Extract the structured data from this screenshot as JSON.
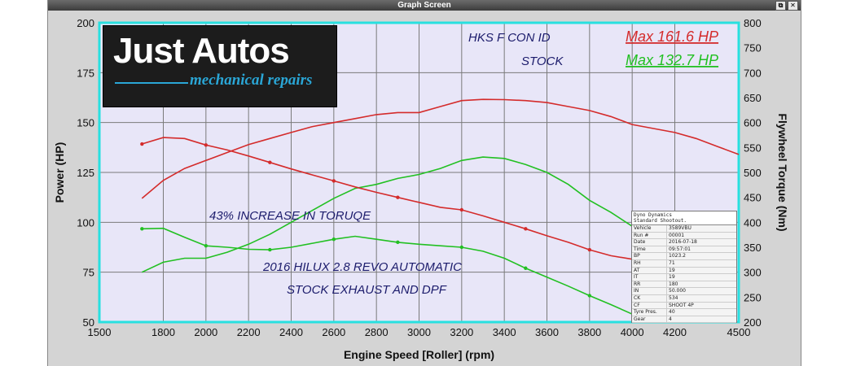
{
  "window": {
    "title": "Graph Screen",
    "buttons": [
      "Restore",
      "Close"
    ]
  },
  "brand": {
    "name": "Just Autos",
    "tagline": "mechanical repairs"
  },
  "chart_data": {
    "type": "line",
    "xlabel": "Engine Speed [Roller] (rpm)",
    "ylabel": "Power (HP)",
    "y2label": "Flywheel Torque (Nm)",
    "xlim": [
      1500,
      4500
    ],
    "ylim": [
      50,
      200
    ],
    "y2lim": [
      200,
      800
    ],
    "xticks": [
      1500,
      1800,
      2000,
      2200,
      2400,
      2600,
      2800,
      3000,
      3200,
      3400,
      3600,
      3800,
      4000,
      4200,
      4500
    ],
    "yticks": [
      50,
      75,
      100,
      125,
      150,
      175,
      200
    ],
    "y2ticks": [
      200,
      250,
      300,
      350,
      400,
      450,
      500,
      550,
      600,
      650,
      700,
      750,
      800
    ],
    "grid": true,
    "series": [
      {
        "color": "#d42b2b",
        "axis": "left",
        "x": [
          1700,
          1800,
          1900,
          2000,
          2100,
          2200,
          2300,
          2400,
          2500,
          2600,
          2700,
          2800,
          2900,
          3000,
          3100,
          3200,
          3300,
          3400,
          3500,
          3600,
          3700,
          3800,
          3900,
          4000,
          4100,
          4200,
          4300,
          4400,
          4500
        ],
        "values": [
          112,
          121,
          127,
          131,
          135,
          139,
          142,
          145,
          148,
          150,
          152,
          154,
          155,
          155,
          158,
          161,
          161.6,
          161.5,
          161,
          160,
          158,
          156,
          153,
          149,
          147,
          145,
          142,
          138,
          134
        ]
      },
      {
        "color": "#22c022",
        "axis": "left",
        "x": [
          1700,
          1800,
          1900,
          2000,
          2100,
          2200,
          2300,
          2400,
          2500,
          2600,
          2700,
          2800,
          2900,
          3000,
          3100,
          3200,
          3300,
          3400,
          3500,
          3600,
          3700,
          3800,
          3900,
          4000
        ],
        "values": [
          75,
          80,
          82,
          82,
          85,
          89,
          94,
          100,
          106,
          112,
          117,
          119,
          122,
          124,
          127,
          131,
          132.7,
          132,
          129,
          125,
          119,
          111,
          105,
          98
        ]
      },
      {
        "color": "#d42b2b",
        "axis": "right",
        "x": [
          1700,
          1800,
          1900,
          2000,
          2100,
          2200,
          2300,
          2400,
          2500,
          2600,
          2700,
          2800,
          2900,
          3000,
          3100,
          3200,
          3300,
          3400,
          3500,
          3600,
          3700,
          3800,
          3900,
          4000
        ],
        "values": [
          557,
          570,
          568,
          555,
          545,
          533,
          520,
          507,
          495,
          483,
          471,
          460,
          450,
          440,
          430,
          425,
          413,
          400,
          387,
          373,
          360,
          345,
          333,
          326
        ]
      },
      {
        "color": "#22c022",
        "axis": "right",
        "x": [
          1700,
          1800,
          1900,
          2000,
          2100,
          2200,
          2300,
          2400,
          2500,
          2600,
          2700,
          2800,
          2900,
          3000,
          3100,
          3200,
          3300,
          3400,
          3500,
          3600,
          3700,
          3800,
          3900,
          4000
        ],
        "values": [
          387,
          388,
          370,
          353,
          350,
          346,
          345,
          350,
          358,
          366,
          372,
          366,
          360,
          356,
          353,
          350,
          342,
          328,
          308,
          290,
          272,
          253,
          235,
          216
        ]
      }
    ],
    "annotations": [
      {
        "text": "HKS F CON ID",
        "color": "#1c1c6c"
      },
      {
        "text": "STOCK",
        "color": "#1c1c6c"
      },
      {
        "text": "Max 161.6 HP",
        "color": "#d42b2b"
      },
      {
        "text": "Max 132.7 HP",
        "color": "#22c022"
      },
      {
        "text": "43% INCREASE IN TORUQE",
        "color": "#1c1c6c"
      },
      {
        "text": "2016 HILUX 2.8 REVO AUTOMATIC",
        "color": "#1c1c6c"
      },
      {
        "text": "STOCK EXHAUST AND DPF",
        "color": "#1c1c6c"
      }
    ],
    "colors": {
      "plot_bg": "#e8e6f8",
      "frame": "#28e0e0",
      "grid": "#7a7a7a"
    }
  },
  "info_box": {
    "header": [
      "Dyno Dynamics",
      "Standard Shootout."
    ],
    "rows": [
      [
        "Vehicle",
        "3589VBU"
      ],
      [
        "Run #",
        "00001"
      ],
      [
        "Date",
        "2016-07-18"
      ],
      [
        "Time",
        "09:57:01"
      ],
      [
        "BP",
        "1023.2"
      ],
      [
        "RH",
        "71"
      ],
      [
        "AT",
        "19"
      ],
      [
        "IT",
        "19"
      ],
      [
        "RR",
        "180"
      ],
      [
        "IN",
        "50.000"
      ],
      [
        "CK",
        "534"
      ],
      [
        "CF",
        "SHOOT 4P"
      ],
      [
        "Tyre Pres.",
        "40"
      ],
      [
        "Gear",
        "4"
      ]
    ]
  }
}
